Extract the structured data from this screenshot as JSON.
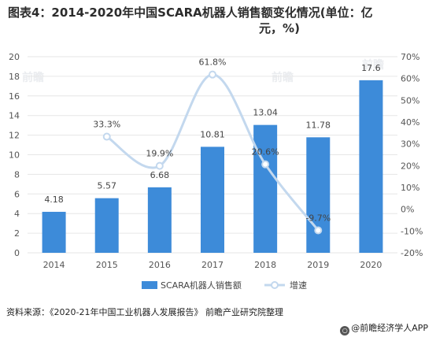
{
  "title_line1": "图表4：2014-2020年中国SCARA机器人销售额变化情况(单位：亿",
  "title_line2": "元，%)",
  "source": "资料来源：《2020-21年中国工业机器人发展报告》 前瞻产业研究院整理",
  "brand": "@前瞻经济学人APP",
  "watermark": "前瞻",
  "chart_data": {
    "type": "bar",
    "categories": [
      "2014",
      "2015",
      "2016",
      "2017",
      "2018",
      "2019",
      "2020"
    ],
    "series": [
      {
        "name": "SCARA机器人销售额",
        "type": "bar",
        "axis": "left",
        "values": [
          4.18,
          5.57,
          6.68,
          10.81,
          13.04,
          11.78,
          17.6
        ],
        "labels": [
          "4.18",
          "5.57",
          "6.68",
          "10.81",
          "13.04",
          "11.78",
          "17.6"
        ],
        "color": "#3d8bd9"
      },
      {
        "name": "增速",
        "type": "line",
        "axis": "right",
        "values": [
          null,
          33.3,
          19.9,
          61.8,
          20.6,
          -9.7,
          null
        ],
        "labels": [
          "",
          "33.3%",
          "19.9%",
          "61.8%",
          "20.6%",
          "-9.7%",
          ""
        ],
        "color": "#c3d8ee"
      }
    ],
    "y_left": {
      "min": 0,
      "max": 20,
      "ticks": [
        "0",
        "2",
        "4",
        "6",
        "8",
        "10",
        "12",
        "14",
        "16",
        "18",
        "20"
      ]
    },
    "y_right": {
      "min": -20,
      "max": 70,
      "ticks": [
        "-20%",
        "-10%",
        "0%",
        "10%",
        "20%",
        "30%",
        "40%",
        "50%",
        "60%",
        "70%"
      ]
    },
    "grid": true,
    "legend_position": "bottom"
  }
}
